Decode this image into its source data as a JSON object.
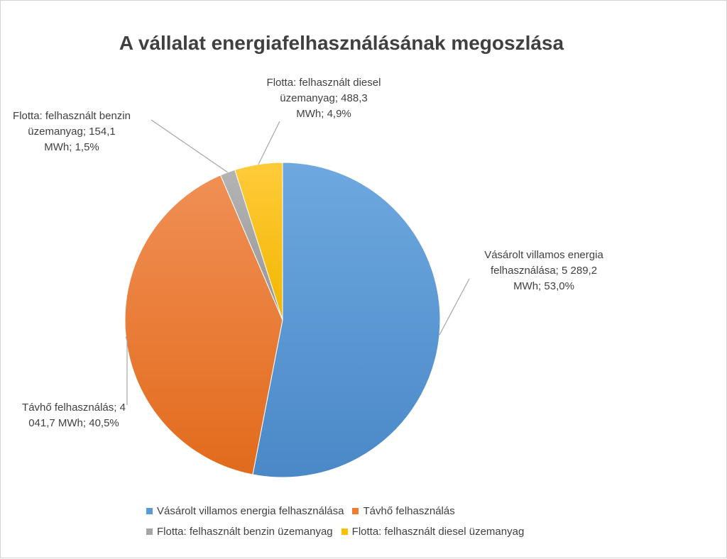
{
  "chart_data": {
    "type": "pie",
    "title": "A vállalat energiafelhasználásának megoszlása",
    "categories": [
      "Vásárolt villamos energia felhasználása",
      "Távhő felhasználás",
      "Flotta: felhasznált benzin üzemanyag",
      "Flotta: felhasznált diesel üzemanyag"
    ],
    "values": [
      5289.2,
      4041.7,
      154.1,
      488.3
    ],
    "percentages": [
      53.0,
      40.5,
      1.5,
      4.9
    ],
    "unit": "MWh",
    "colors": [
      "#5b9bd5",
      "#ed7d31",
      "#a5a5a5",
      "#ffc000"
    ],
    "data_labels": [
      [
        "Vásárolt villamos energia",
        "felhasználása; 5 289,2",
        "MWh; 53,0%"
      ],
      [
        "Távhő felhasználás; 4",
        "041,7 MWh; 40,5%"
      ],
      [
        "Flotta: felhasznált benzin",
        "üzemanyag;  154,1",
        "MWh; 1,5%"
      ],
      [
        "Flotta: felhasznált diesel",
        "üzemanyag;  488,3",
        "MWh; 4,9%"
      ]
    ],
    "legend_position": "bottom"
  }
}
